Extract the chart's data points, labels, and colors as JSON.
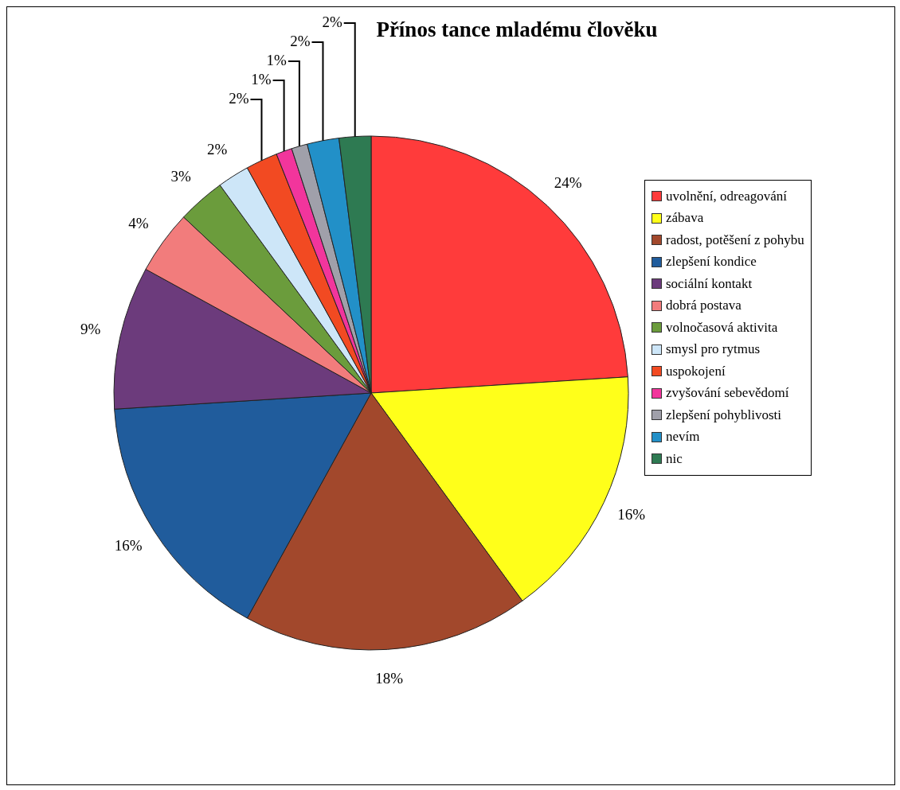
{
  "chart_data": {
    "type": "pie",
    "title": "Přínos tance mladému člověku",
    "categories": [
      "uvolnění, odreagování",
      "zábava",
      "radost, potěšení z pohybu",
      "zlepšení kondice",
      "sociální kontakt",
      "dobrá postava",
      "volnočasová aktivita",
      "smysl pro rytmus",
      "uspokojení",
      "zvyšování sebevědomí",
      "zlepšení pohyblivosti",
      "nevím",
      "nic"
    ],
    "values": [
      24,
      16,
      18,
      16,
      9,
      4,
      3,
      2,
      2,
      1,
      1,
      2,
      2
    ],
    "value_labels": [
      "24%",
      "16%",
      "18%",
      "16%",
      "9%",
      "4%",
      "3%",
      "2%",
      "2%",
      "1%",
      "1%",
      "2%",
      "2%"
    ],
    "colors": [
      "#ff3b3b",
      "#ffff1a",
      "#a2482c",
      "#205c9c",
      "#6c3b7c",
      "#f27c7c",
      "#6b9c3c",
      "#cde6f8",
      "#f24a22",
      "#f2359c",
      "#a0a0aa",
      "#2290c8",
      "#2e7a52"
    ],
    "legend": "right"
  }
}
